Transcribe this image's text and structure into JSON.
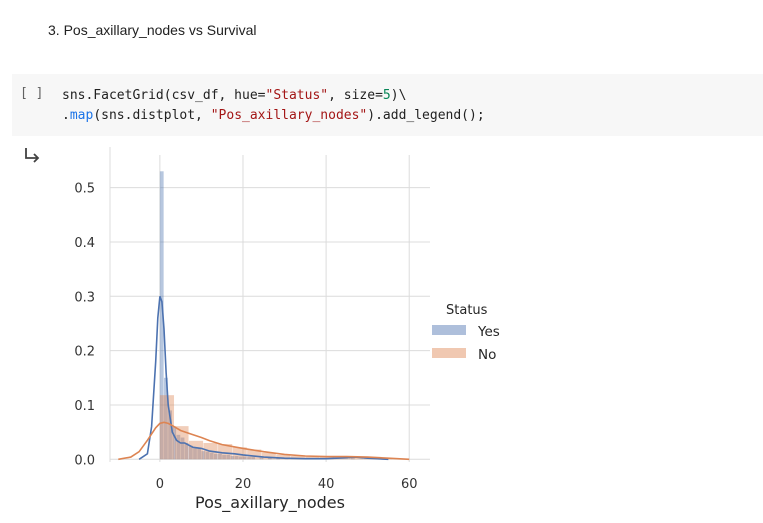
{
  "text_cell": {
    "heading": "3. Pos_axillary_nodes vs Survival"
  },
  "code_cell": {
    "run_label": "[ ]",
    "line1": {
      "p1": "sns.FacetGrid(csv_df, hue=",
      "s1": "\"Status\"",
      "p2": ", size=",
      "n1": "5",
      "p3": ")\\"
    },
    "line2": {
      "p1": ".",
      "fn": "map",
      "p2": "(sns.distplot, ",
      "s1": "\"Pos_axillary_nodes\"",
      "p3": ").add_legend();"
    }
  },
  "output": {
    "icon": "output-arrow-icon"
  },
  "colors": {
    "yes": "#4c72b0",
    "no": "#dd8452",
    "grid": "#dcdcdc",
    "string": "#a31515",
    "number": "#098658"
  },
  "chart_data": {
    "type": "histogram+kde",
    "xlabel": "Pos_axillary_nodes",
    "ylabel": "",
    "xlim": [
      -12,
      65
    ],
    "ylim": [
      -0.005,
      0.56
    ],
    "x_ticks": [
      0,
      20,
      40,
      60
    ],
    "x_tick_labels": [
      "0",
      "20",
      "40",
      "60"
    ],
    "y_ticks": [
      0.0,
      0.1,
      0.2,
      0.3,
      0.4,
      0.5
    ],
    "y_tick_labels": [
      "0.0",
      "0.1",
      "0.2",
      "0.3",
      "0.4",
      "0.5"
    ],
    "grid": true,
    "legend": {
      "title": "Status",
      "placement": "right",
      "entries": [
        "Yes",
        "No"
      ]
    },
    "series": [
      {
        "name": "Yes",
        "color": "#4c72b0",
        "hist": {
          "bin_width": 1.0,
          "bins": [
            [
              0,
              0.53
            ],
            [
              1,
              0.15
            ],
            [
              2,
              0.09
            ],
            [
              3,
              0.06
            ],
            [
              4,
              0.045
            ],
            [
              5,
              0.04
            ],
            [
              6,
              0.03
            ],
            [
              7,
              0.025
            ],
            [
              8,
              0.02
            ],
            [
              9,
              0.02
            ],
            [
              10,
              0.015
            ],
            [
              11,
              0.014
            ],
            [
              12,
              0.012
            ],
            [
              13,
              0.01
            ],
            [
              14,
              0.01
            ],
            [
              15,
              0.008
            ],
            [
              16,
              0.008
            ],
            [
              17,
              0.006
            ],
            [
              18,
              0.006
            ],
            [
              19,
              0.005
            ],
            [
              20,
              0.005
            ],
            [
              21,
              0.004
            ],
            [
              22,
              0.004
            ],
            [
              24,
              0.003
            ],
            [
              26,
              0.003
            ],
            [
              28,
              0.002
            ],
            [
              30,
              0.002
            ],
            [
              46,
              0.002
            ]
          ]
        },
        "kde": {
          "x": [
            -5,
            -3,
            -2,
            -1,
            -0.5,
            0,
            0.5,
            1,
            1.5,
            2,
            3,
            4,
            5,
            6,
            8,
            10,
            12,
            15,
            18,
            20,
            25,
            30,
            35,
            40,
            45,
            47,
            50,
            55
          ],
          "y": [
            0.0,
            0.01,
            0.06,
            0.18,
            0.26,
            0.3,
            0.29,
            0.24,
            0.16,
            0.1,
            0.05,
            0.035,
            0.03,
            0.03,
            0.022,
            0.02,
            0.015,
            0.012,
            0.01,
            0.008,
            0.004,
            0.002,
            0.001,
            0.001,
            0.003,
            0.004,
            0.002,
            0.0
          ]
        }
      },
      {
        "name": "No",
        "color": "#dd8452",
        "hist": {
          "bin_width": 3.5,
          "bins": [
            [
              0,
              0.118
            ],
            [
              3.5,
              0.061
            ],
            [
              7,
              0.034
            ],
            [
              10.5,
              0.03
            ],
            [
              14,
              0.028
            ],
            [
              17.5,
              0.022
            ],
            [
              21,
              0.018
            ],
            [
              24.5,
              0.012
            ],
            [
              28,
              0.008
            ],
            [
              31.5,
              0.006
            ],
            [
              35,
              0.005
            ],
            [
              38.5,
              0.004
            ],
            [
              42,
              0.003
            ],
            [
              45.5,
              0.004
            ],
            [
              49,
              0.003
            ],
            [
              52.5,
              0.002
            ]
          ]
        },
        "kde": {
          "x": [
            -10,
            -7,
            -5,
            -3,
            -1,
            0,
            1,
            2,
            3,
            5,
            8,
            10,
            12,
            15,
            20,
            25,
            30,
            35,
            40,
            45,
            50,
            55,
            60
          ],
          "y": [
            0.0,
            0.004,
            0.014,
            0.035,
            0.058,
            0.066,
            0.068,
            0.066,
            0.062,
            0.053,
            0.045,
            0.04,
            0.034,
            0.027,
            0.02,
            0.014,
            0.009,
            0.006,
            0.005,
            0.005,
            0.004,
            0.002,
            0.0
          ]
        }
      }
    ]
  }
}
